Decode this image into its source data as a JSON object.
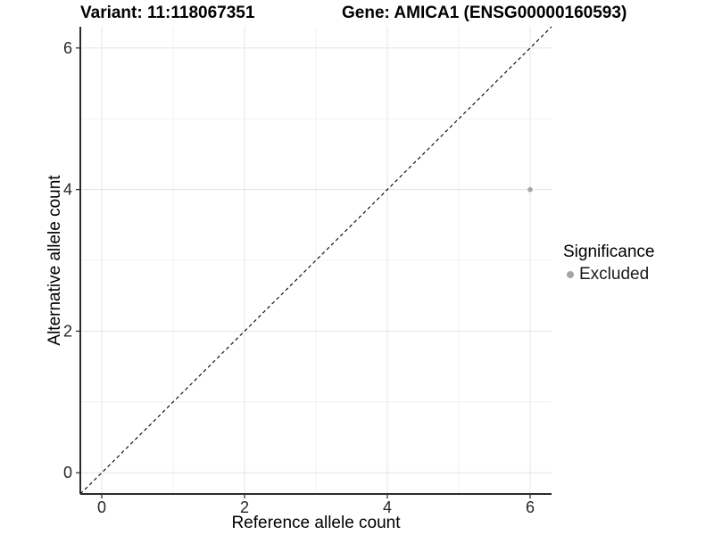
{
  "header": {
    "variant_title": "Variant: 11:118067351",
    "gene_title": "Gene: AMICA1 (ENSG00000160593)"
  },
  "chart_data": {
    "type": "scatter",
    "xlabel": "Reference allele count",
    "ylabel": "Alternative allele count",
    "xlim": [
      -0.3,
      6.3
    ],
    "ylim": [
      -0.3,
      6.3
    ],
    "x_ticks": [
      0,
      2,
      4,
      6
    ],
    "y_ticks": [
      0,
      2,
      4,
      6
    ],
    "x_minor_ticks": [
      1,
      3,
      5
    ],
    "y_minor_ticks": [
      1,
      3,
      5
    ],
    "grid": "major+minor",
    "points": [
      {
        "x": 6,
        "y": 4,
        "series": "Excluded",
        "color": "#A6A6A6",
        "radius": 2.8
      }
    ],
    "identity_line": {
      "x1": -0.3,
      "y1": -0.3,
      "x2": 6.3,
      "y2": 6.3,
      "style": "dashed",
      "color": "#000000"
    },
    "legend": {
      "title": "Significance",
      "position": "right",
      "entries": [
        {
          "label": "Excluded",
          "color": "#A6A6A6",
          "marker": "circle"
        }
      ]
    },
    "colors": {
      "background": "#FFFFFF",
      "grid_major": "#E7E7E7",
      "grid_minor": "#F1F1F1",
      "axis_line": "#2B2B2B",
      "tick_mark": "#333333",
      "tick_label": "#262626"
    }
  }
}
